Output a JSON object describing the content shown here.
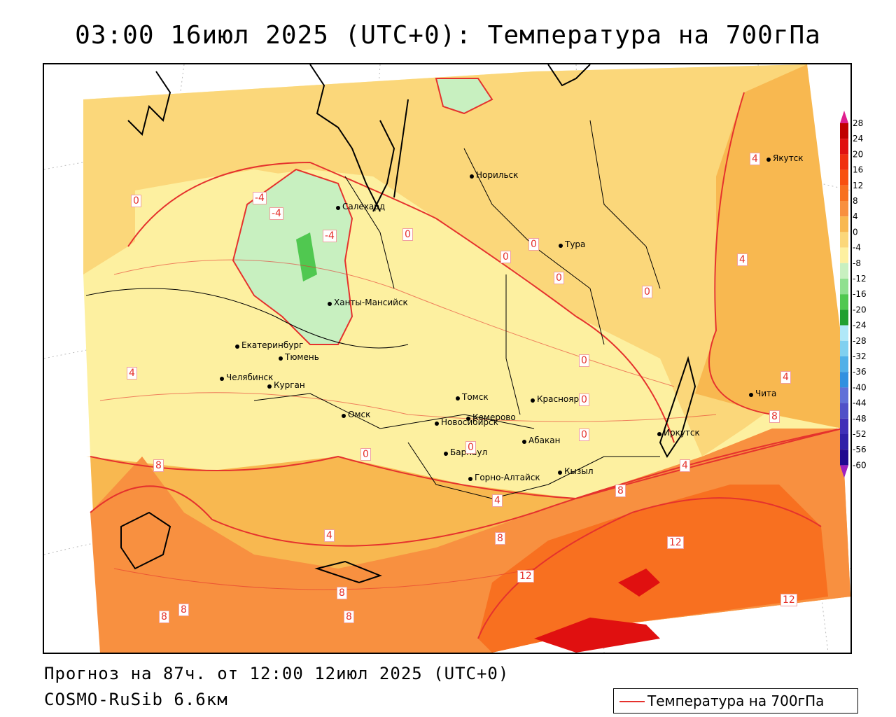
{
  "title": "03:00 16июл 2025 (UTC+0): Температура на 700гПа",
  "footer": {
    "forecast": "Прогноз на 87ч. от 12:00 12июл 2025 (UTC+0)",
    "model": "COSMO-RuSib 6.6км"
  },
  "legend": {
    "label": "Температура на 700гПа",
    "line_color": "#e5322d"
  },
  "color_scale": {
    "ticks": [
      "28",
      "24",
      "20",
      "16",
      "12",
      "8",
      "4",
      "0",
      "-4",
      "-8",
      "-12",
      "-16",
      "-20",
      "-24",
      "-28",
      "-32",
      "-36",
      "-40",
      "-44",
      "-48",
      "-52",
      "-56",
      "-60"
    ],
    "colors": [
      "#c00000",
      "#e01010",
      "#f03010",
      "#f85010",
      "#f87020",
      "#f89040",
      "#f8b850",
      "#fbd77a",
      "#fdf0a0",
      "#c8f0c0",
      "#90e090",
      "#50c850",
      "#20a030",
      "#b0e8f8",
      "#80d0f0",
      "#50b0e8",
      "#3090e0",
      "#6070d8",
      "#5050c8",
      "#4030b8",
      "#3020a8",
      "#200890"
    ],
    "top_arrow_color": "#e0208f",
    "bottom_arrow_color": "#a020c0"
  },
  "cities": [
    {
      "name": "Норильск"
    },
    {
      "name": "Якутск"
    },
    {
      "name": "Салехард"
    },
    {
      "name": "Тура"
    },
    {
      "name": "Ханты-Мансийск"
    },
    {
      "name": "Екатеринбург"
    },
    {
      "name": "Тюмень"
    },
    {
      "name": "Челябинск"
    },
    {
      "name": "Курган"
    },
    {
      "name": "Омск"
    },
    {
      "name": "Новосибирск"
    },
    {
      "name": "Томск"
    },
    {
      "name": "Кемерово"
    },
    {
      "name": "Красноярск"
    },
    {
      "name": "Абакан"
    },
    {
      "name": "Барнаул"
    },
    {
      "name": "Горно-Алтайск"
    },
    {
      "name": "Кызыл"
    },
    {
      "name": "Иркутск"
    },
    {
      "name": "Чита"
    }
  ],
  "isotherm_labels": [
    "0",
    "-4",
    "-4",
    "-4",
    "0",
    "0",
    "0",
    "0",
    "0",
    "0",
    "0",
    "0",
    "0",
    "0",
    "4",
    "4",
    "4",
    "4",
    "4",
    "4",
    "4",
    "8",
    "8",
    "8",
    "8",
    "8",
    "8",
    "8",
    "8",
    "12",
    "12",
    "12"
  ]
}
